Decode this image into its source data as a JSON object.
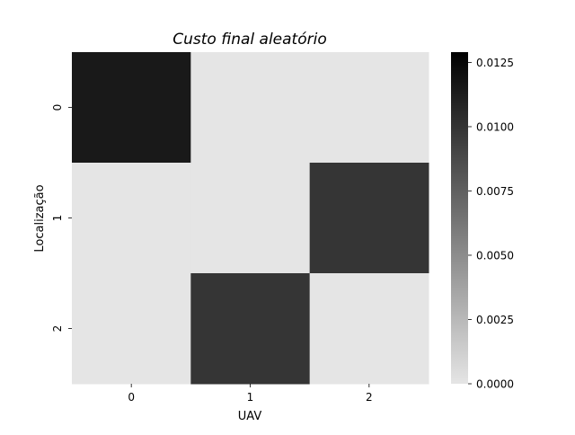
{
  "chart_data": {
    "type": "heatmap",
    "title": "Custo final aleatório",
    "xlabel": "UAV",
    "ylabel": "Localização",
    "x_categories": [
      "0",
      "1",
      "2"
    ],
    "y_categories": [
      "0",
      "1",
      "2"
    ],
    "values": [
      [
        0.0115,
        0.0,
        0.0
      ],
      [
        0.0,
        0.0,
        0.0099
      ],
      [
        0.0,
        0.0099,
        0.0
      ]
    ],
    "colorbar": {
      "min": 0.0,
      "max": 0.0129,
      "ticks": [
        0.0,
        0.0025,
        0.005,
        0.0075,
        0.01,
        0.0125
      ],
      "tick_labels": [
        "0.0000",
        "0.0025",
        "0.0050",
        "0.0075",
        "0.0100",
        "0.0125"
      ],
      "colormap": "greys",
      "low_color": "#e5e5e5",
      "high_color": "#000000"
    },
    "grid": false
  }
}
